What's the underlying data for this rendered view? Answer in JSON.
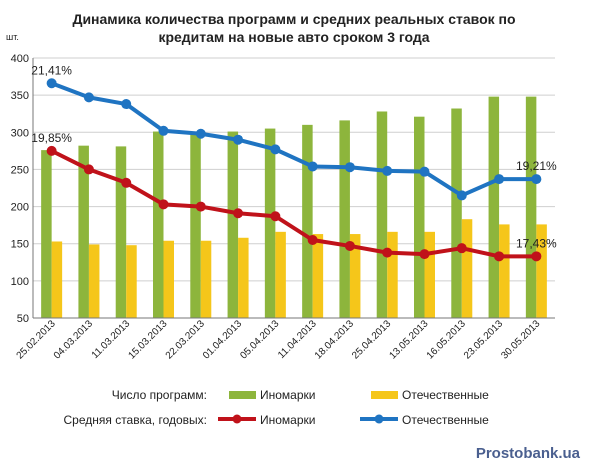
{
  "chart_data": {
    "type": "bar",
    "title": [
      "Динамика количества программ и средних реальных ставок по",
      "кредитам на новые авто сроком 3 года"
    ],
    "ylabel": "шт.",
    "ylim": [
      50,
      400
    ],
    "yticks": [
      50,
      100,
      150,
      200,
      250,
      300,
      350,
      400
    ],
    "categories": [
      "25.02.2013",
      "04.03.2013",
      "11.03.2013",
      "15.03.2013",
      "22.03.2013",
      "01.04.2013",
      "05.04.2013",
      "11.04.2013",
      "18.04.2013",
      "25.04.2013",
      "13.05.2013",
      "16.05.2013",
      "23.05.2013",
      "30.05.2013"
    ],
    "bar_series": [
      {
        "name": "Иномарки",
        "color": "#8db53c",
        "values": [
          276,
          282,
          281,
          301,
          299,
          301,
          305,
          310,
          316,
          328,
          321,
          332,
          348,
          348
        ]
      },
      {
        "name": "Отечественные",
        "color": "#f5c61a",
        "values": [
          153,
          149,
          148,
          154,
          154,
          158,
          166,
          163,
          163,
          166,
          166,
          183,
          176,
          176
        ]
      }
    ],
    "line_series": [
      {
        "name": "Иномарки",
        "color": "#c0121a",
        "values": [
          275,
          250,
          232,
          203,
          200,
          191,
          187,
          155,
          147,
          138,
          136,
          144,
          133,
          133
        ]
      },
      {
        "name": "Отечественные",
        "color": "#1f74c2",
        "values": [
          366,
          347,
          338,
          302,
          298,
          290,
          277,
          254,
          253,
          248,
          247,
          215,
          237,
          237
        ]
      }
    ],
    "annotations": [
      {
        "text": "21,41%",
        "series": 1,
        "index": 0,
        "pos": "above"
      },
      {
        "text": "19,85%",
        "series": 0,
        "index": 0,
        "pos": "above"
      },
      {
        "text": "19,21%",
        "series": 1,
        "index": 13,
        "pos": "above"
      },
      {
        "text": "17,43%",
        "series": 0,
        "index": 13,
        "pos": "above"
      }
    ],
    "legend": {
      "bars_label": "Число программ:",
      "lines_label": "Средняя  ставка, годовых:",
      "position": "bottom"
    },
    "grid": true
  },
  "watermark": "Prostobank.ua"
}
